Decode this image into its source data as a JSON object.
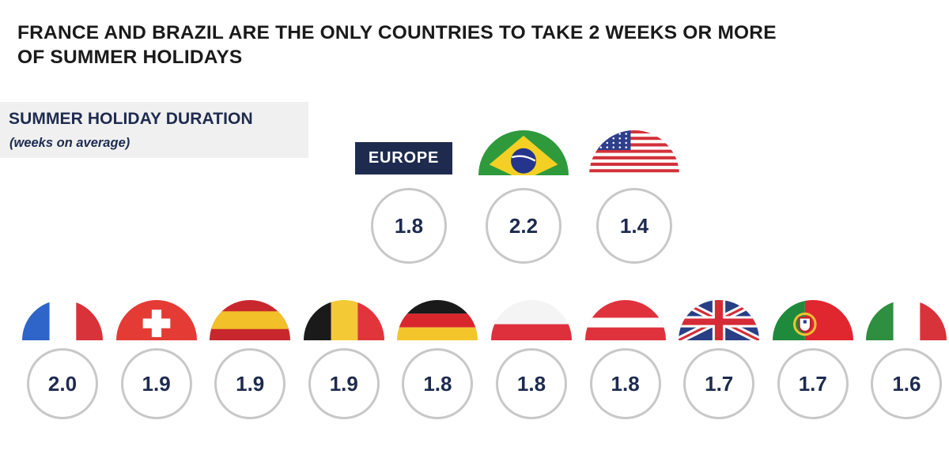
{
  "title": {
    "line1": "FRANCE AND BRAZIL ARE THE ONLY COUNTRIES TO TAKE 2 WEEKS OR MORE",
    "line2": "OF SUMMER HOLIDAYS"
  },
  "subhead": {
    "main": "SUMMER HOLIDAY DURATION",
    "sub": "(weeks on average)"
  },
  "europe_label": "EUROPE",
  "colors": {
    "navy": "#1e2b4f",
    "ring": "#c8c8c8",
    "panel": "#f0f0f0"
  },
  "chart_data": {
    "type": "table",
    "unit": "weeks on average",
    "top_row": [
      {
        "icon": "europe-label",
        "value": "1.8"
      },
      {
        "icon": "brazil-flag-icon",
        "value": "2.2"
      },
      {
        "icon": "usa-flag-icon",
        "value": "1.4"
      }
    ],
    "bottom_row": [
      {
        "icon": "france-flag-icon",
        "value": "2.0"
      },
      {
        "icon": "switzerland-flag-icon",
        "value": "1.9"
      },
      {
        "icon": "spain-flag-icon",
        "value": "1.9"
      },
      {
        "icon": "belgium-flag-icon",
        "value": "1.9"
      },
      {
        "icon": "germany-flag-icon",
        "value": "1.8"
      },
      {
        "icon": "poland-flag-icon",
        "value": "1.8"
      },
      {
        "icon": "austria-flag-icon",
        "value": "1.8"
      },
      {
        "icon": "uk-flag-icon",
        "value": "1.7"
      },
      {
        "icon": "portugal-flag-icon",
        "value": "1.7"
      },
      {
        "icon": "italy-flag-icon",
        "value": "1.6"
      }
    ]
  }
}
